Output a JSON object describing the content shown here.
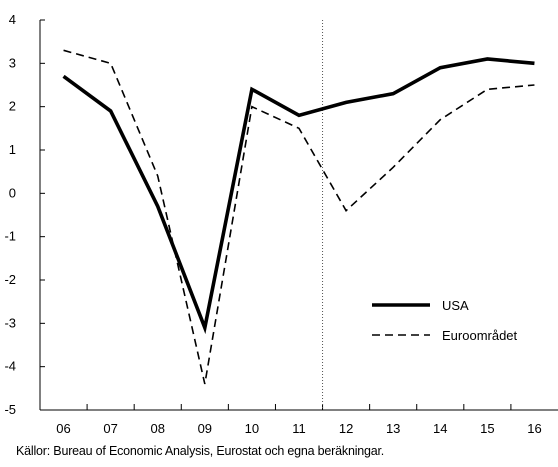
{
  "chart_data": {
    "type": "line",
    "categories": [
      "06",
      "07",
      "08",
      "09",
      "10",
      "11",
      "12",
      "13",
      "14",
      "15",
      "16"
    ],
    "series": [
      {
        "name": "USA",
        "values": [
          2.7,
          1.9,
          -0.3,
          -3.1,
          2.4,
          1.8,
          2.1,
          2.3,
          2.9,
          3.1,
          3.0
        ],
        "style": "solid-thick",
        "color": "#000000"
      },
      {
        "name": "Euroområdet",
        "values": [
          3.3,
          3.0,
          0.4,
          -4.4,
          2.0,
          1.5,
          -0.4,
          0.6,
          1.7,
          2.4,
          2.5
        ],
        "style": "dashed",
        "color": "#000000"
      }
    ],
    "yticks": [
      "4",
      "3",
      "2",
      "1",
      "0",
      "-1",
      "-2",
      "-3",
      "-4",
      "-5"
    ],
    "ylim": [
      -5,
      4
    ],
    "forecast_divider_after": "11",
    "legend_position": "bottom-right",
    "grid": false
  },
  "source_note": "Källor: Bureau of Economic Analysis, Eurostat och egna beräkningar."
}
